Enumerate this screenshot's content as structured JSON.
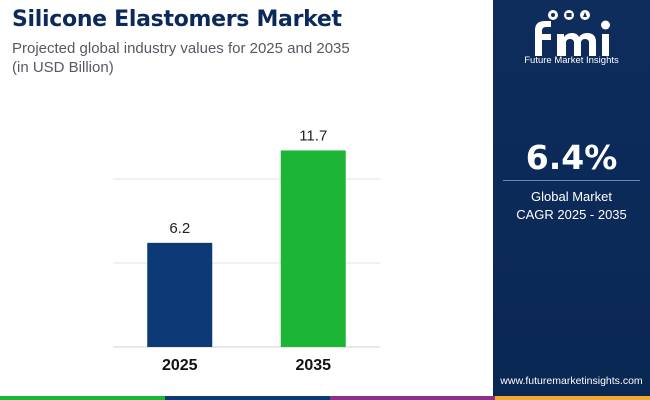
{
  "header": {
    "title": "Silicone Elastomers Market",
    "subtitle_line1": "Projected global industry values for 2025 and 2035",
    "subtitle_line2": "(in USD Billion)"
  },
  "chart_data": {
    "type": "bar",
    "categories": [
      "2025",
      "2035"
    ],
    "values": [
      6.2,
      11.7
    ],
    "data_labels": [
      "6.2",
      "11.7"
    ],
    "bar_colors": [
      "#0b3a77",
      "#1db536"
    ],
    "title": "",
    "xlabel": "",
    "ylabel": "",
    "ylim": [
      0,
      15
    ],
    "grid": true,
    "legend": "none"
  },
  "sidebar": {
    "logo_text": "Future Market Insights",
    "cagr_value": "6.4%",
    "cagr_label_line1": "Global Market",
    "cagr_label_line2": "CAGR 2025 - 2035",
    "website": "www.futuremarketinsights.com"
  },
  "footer": {
    "strip_colors": [
      "#1db536",
      "#0b3a77",
      "#8b2f88",
      "#f0a830"
    ]
  }
}
